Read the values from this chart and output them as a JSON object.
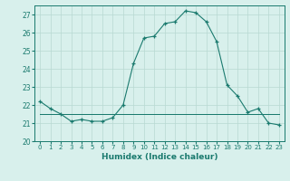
{
  "xlabel": "Humidex (Indice chaleur)",
  "x": [
    0,
    1,
    2,
    3,
    4,
    5,
    6,
    7,
    8,
    9,
    10,
    11,
    12,
    13,
    14,
    15,
    16,
    17,
    18,
    19,
    20,
    21,
    22,
    23
  ],
  "x_labels": [
    "0",
    "1",
    "2",
    "3",
    "4",
    "5",
    "6",
    "7",
    "8",
    "9",
    "10",
    "11",
    "12",
    "13",
    "14",
    "15",
    "16",
    "17",
    "18",
    "19",
    "20",
    "21",
    "22",
    "23"
  ],
  "humidex": [
    22.2,
    21.8,
    21.5,
    21.1,
    21.2,
    21.1,
    21.1,
    21.3,
    22.0,
    24.3,
    25.7,
    25.8,
    26.5,
    26.6,
    27.2,
    27.1,
    26.6,
    25.5,
    23.1,
    22.5,
    21.6,
    21.8,
    21.0,
    20.9
  ],
  "min_line": [
    21.5,
    21.5,
    21.5,
    21.5,
    21.5,
    21.5,
    21.5,
    21.5,
    21.5,
    21.5,
    21.5,
    21.5,
    21.5,
    21.5,
    21.5,
    21.5,
    21.5,
    21.5,
    21.5,
    21.5,
    21.5,
    21.5,
    21.5,
    21.5
  ],
  "max_line": [
    21.5,
    21.5,
    21.5,
    21.5,
    21.5,
    21.5,
    21.5,
    21.5,
    21.5,
    21.5,
    21.5,
    21.5,
    21.5,
    21.5,
    21.5,
    21.5,
    21.5,
    21.5,
    21.5,
    21.5,
    21.5,
    21.5,
    21.5,
    21.5
  ],
  "avg_line": [
    21.5,
    21.5,
    21.5,
    21.5,
    21.5,
    21.5,
    21.5,
    21.5,
    21.5,
    21.5,
    21.5,
    21.5,
    21.5,
    21.5,
    21.5,
    21.5,
    21.5,
    21.5,
    21.5,
    21.5,
    21.5,
    21.5,
    21.5,
    21.5
  ],
  "line_color": "#1a7a6e",
  "bg_color": "#d8f0ec",
  "grid_color": "#b8d8d2",
  "ylim": [
    20,
    27.5
  ],
  "yticks": [
    20,
    21,
    22,
    23,
    24,
    25,
    26,
    27
  ],
  "xlim": [
    -0.5,
    23.5
  ],
  "figsize": [
    3.2,
    2.0
  ],
  "dpi": 100
}
